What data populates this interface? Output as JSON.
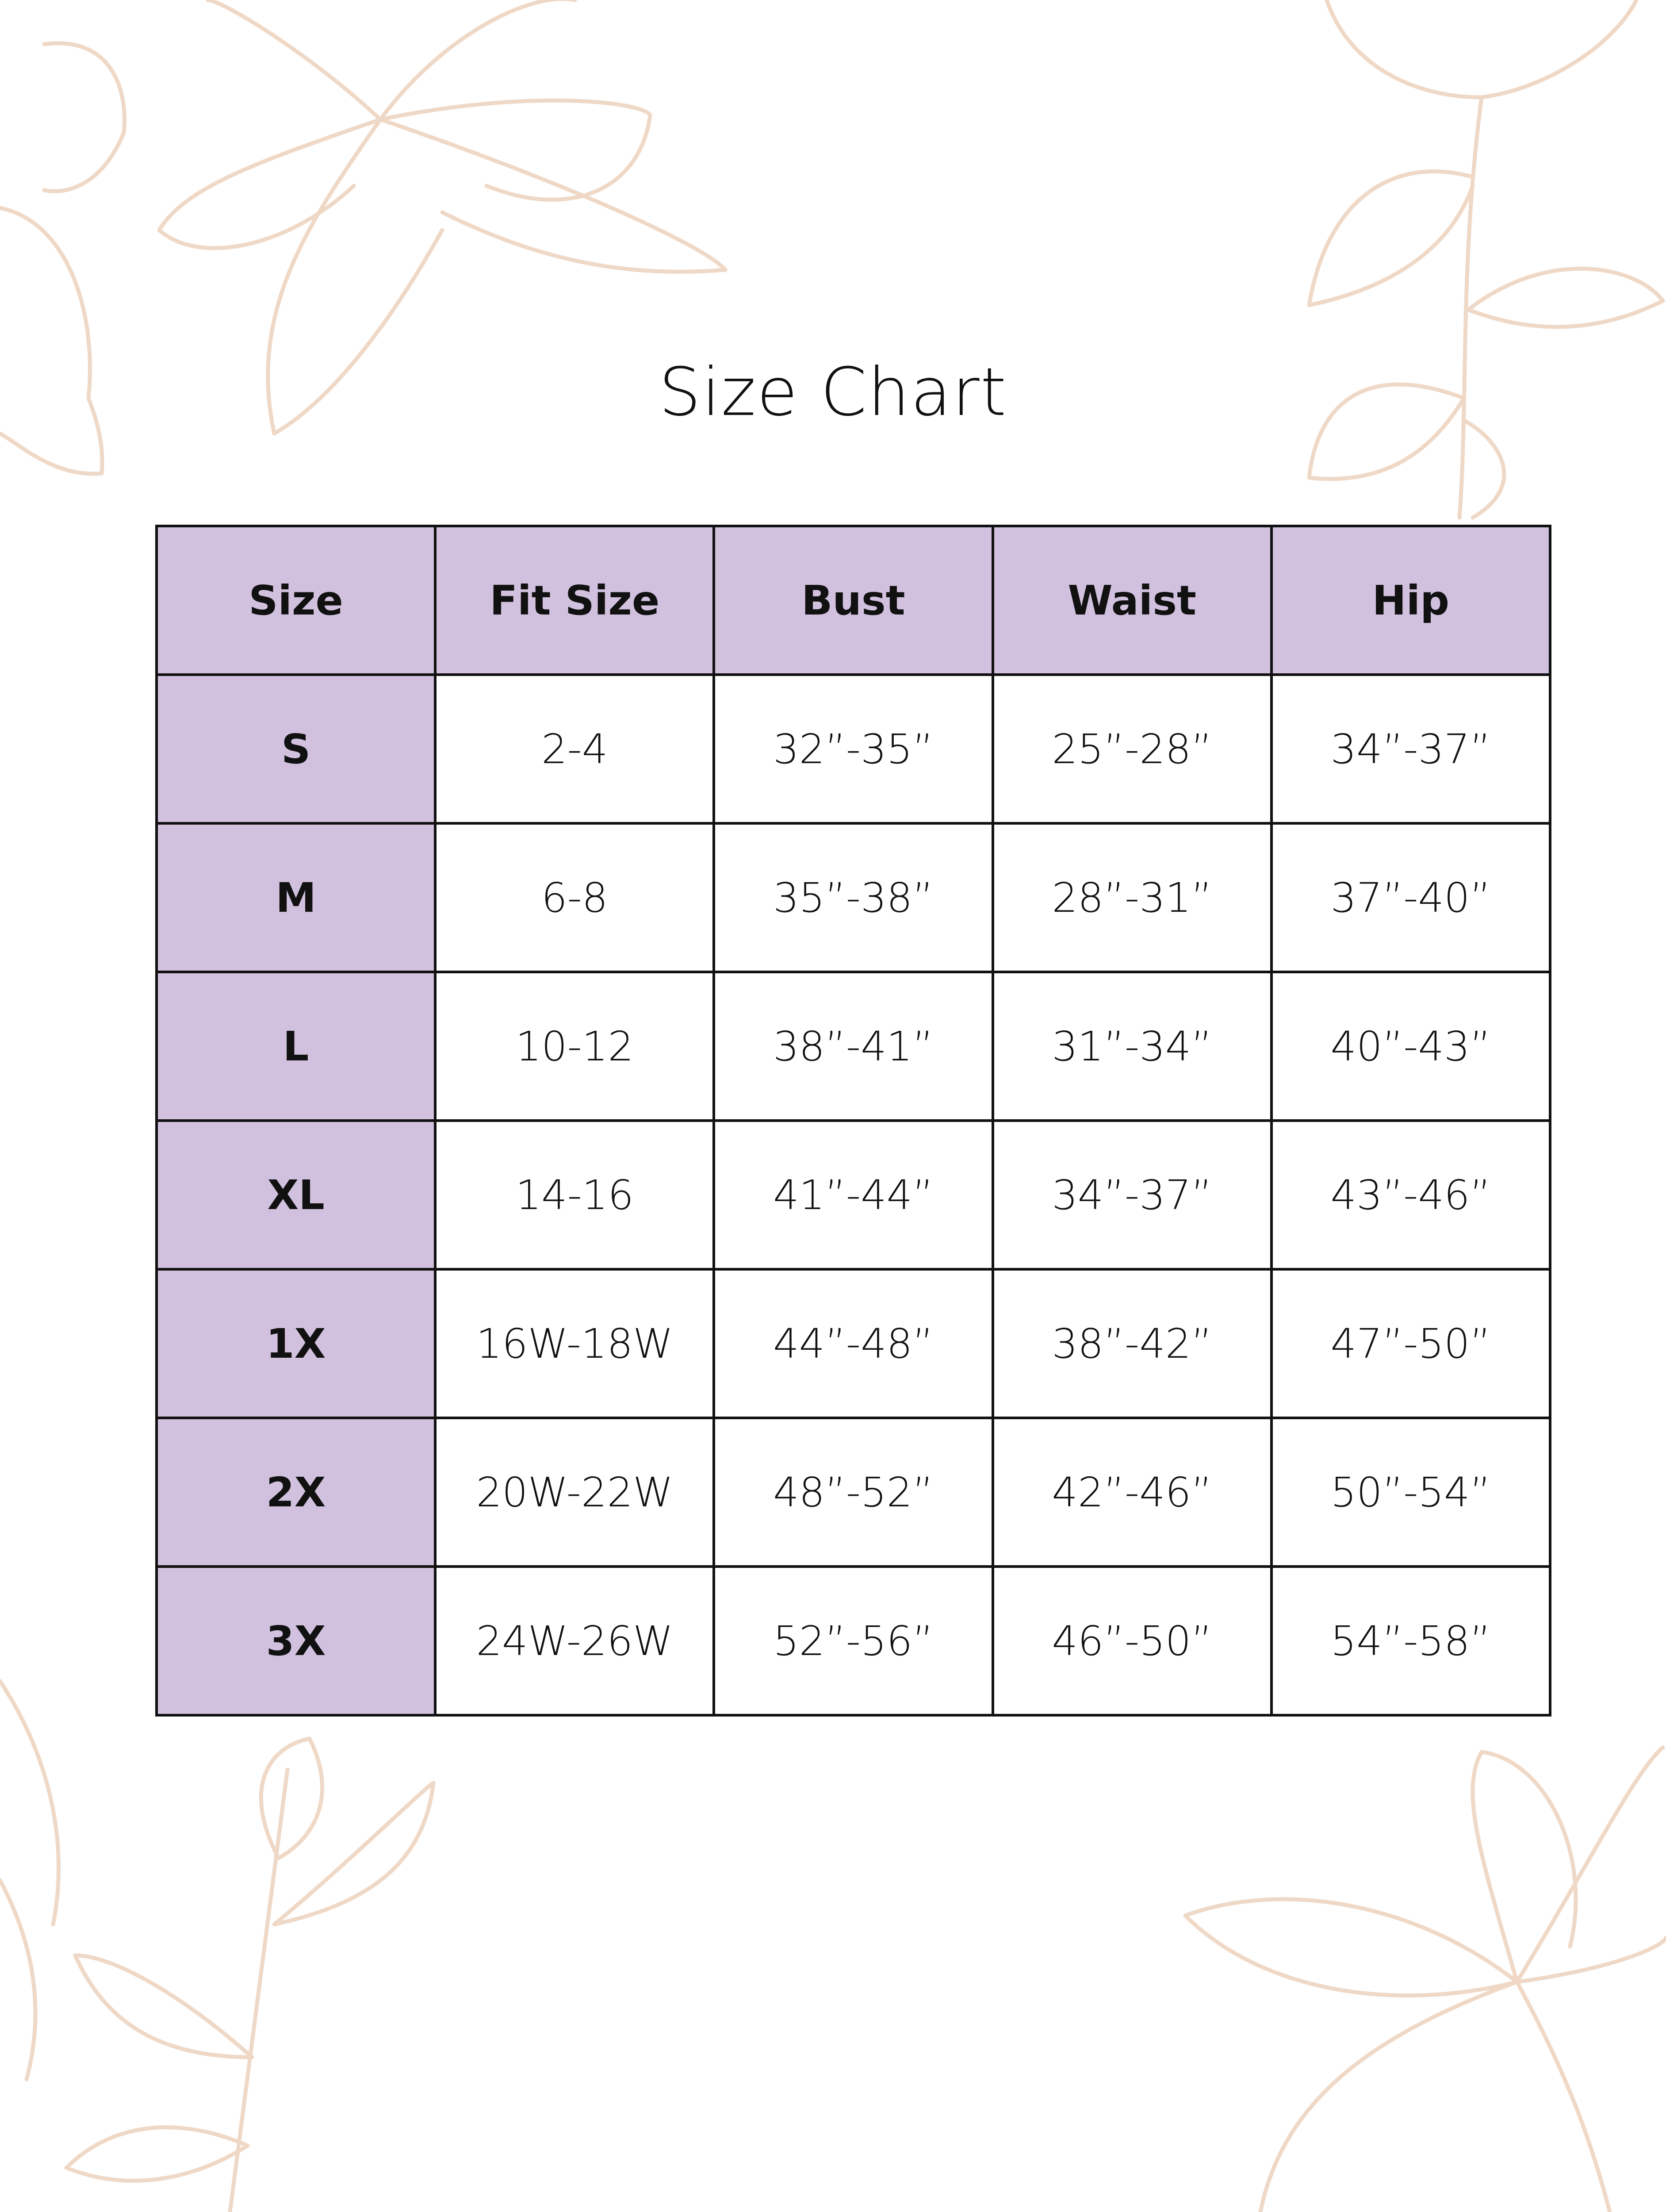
{
  "title": "Size Chart",
  "colors": {
    "header_fill": "#d1c1de",
    "border": "#111111",
    "floral_stroke": "#efd8c6"
  },
  "decoration": "floral-line-art",
  "table": {
    "headers": [
      "Size",
      "Fit Size",
      "Bust",
      "Waist",
      "Hip"
    ],
    "rows": [
      [
        "S",
        "2-4",
        "32”-35”",
        "25”-28”",
        "34”-37”"
      ],
      [
        "M",
        "6-8",
        "35”-38”",
        "28”-31”",
        "37”-40”"
      ],
      [
        "L",
        "10-12",
        "38”-41”",
        "31”-34”",
        "40”-43”"
      ],
      [
        "XL",
        "14-16",
        "41”-44”",
        "34”-37”",
        "43”-46”"
      ],
      [
        "1X",
        "16W-18W",
        "44”-48”",
        "38”-42”",
        "47”-50”"
      ],
      [
        "2X",
        "20W-22W",
        "48”-52”",
        "42”-46”",
        "50”-54”"
      ],
      [
        "3X",
        "24W-26W",
        "52”-56”",
        "46”-50”",
        "54”-58”"
      ]
    ]
  }
}
